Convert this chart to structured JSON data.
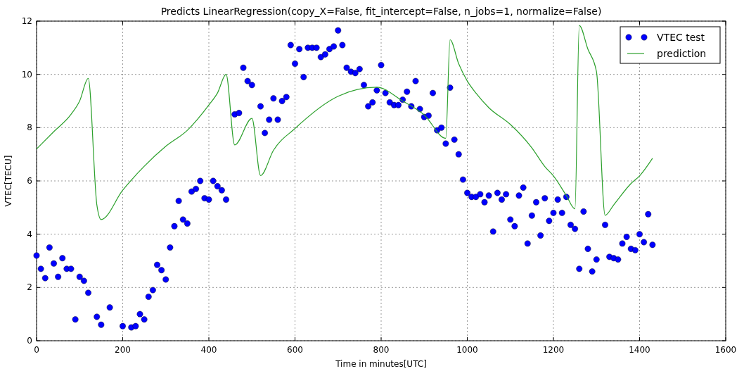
{
  "chart_data": {
    "type": "scatter",
    "title": "Predicts LinearRegression(copy_X=False, fit_intercept=False, n_jobs=1, normalize=False)",
    "xlabel": "Time in minutes[UTC]",
    "ylabel": "VTEC[TECU]",
    "xlim": [
      0,
      1600
    ],
    "ylim": [
      0,
      12
    ],
    "xticks": [
      0,
      200,
      400,
      600,
      800,
      1000,
      1200,
      1400,
      1600
    ],
    "yticks": [
      0,
      2,
      4,
      6,
      8,
      10,
      12
    ],
    "grid": true,
    "legend": "top right",
    "series": [
      {
        "name": "VTEC test",
        "marker": "circle",
        "color": "#0000ff",
        "x": [
          0,
          10,
          20,
          30,
          40,
          50,
          60,
          70,
          80,
          90,
          100,
          110,
          120,
          140,
          150,
          170,
          200,
          220,
          230,
          240,
          250,
          260,
          270,
          280,
          290,
          300,
          310,
          320,
          330,
          340,
          350,
          360,
          370,
          380,
          390,
          400,
          410,
          420,
          430,
          440,
          460,
          470,
          480,
          490,
          500,
          520,
          530,
          540,
          550,
          560,
          570,
          580,
          590,
          600,
          610,
          620,
          630,
          640,
          650,
          660,
          670,
          680,
          690,
          700,
          710,
          720,
          730,
          740,
          750,
          760,
          770,
          780,
          790,
          800,
          810,
          820,
          830,
          840,
          850,
          860,
          870,
          880,
          890,
          900,
          910,
          920,
          930,
          940,
          950,
          960,
          970,
          980,
          990,
          1000,
          1010,
          1020,
          1030,
          1040,
          1050,
          1060,
          1070,
          1080,
          1090,
          1100,
          1110,
          1120,
          1130,
          1140,
          1150,
          1160,
          1170,
          1180,
          1190,
          1200,
          1210,
          1220,
          1230,
          1240,
          1250,
          1260,
          1270,
          1280,
          1290,
          1300,
          1320,
          1330,
          1340,
          1350,
          1360,
          1370,
          1380,
          1390,
          1400,
          1410,
          1420,
          1430
        ],
        "values": [
          3.2,
          2.7,
          2.35,
          3.5,
          2.9,
          2.4,
          3.1,
          2.7,
          2.7,
          0.8,
          2.4,
          2.25,
          1.8,
          0.9,
          0.6,
          1.25,
          0.55,
          0.5,
          0.55,
          1.0,
          0.8,
          1.65,
          1.9,
          2.85,
          2.65,
          2.3,
          3.5,
          4.3,
          5.25,
          4.55,
          4.4,
          5.6,
          5.7,
          6.0,
          5.35,
          5.3,
          6.0,
          5.8,
          5.65,
          5.3,
          8.5,
          8.55,
          10.25,
          9.75,
          9.6,
          8.8,
          7.8,
          8.3,
          9.1,
          8.3,
          9.0,
          9.15,
          11.1,
          10.4,
          10.95,
          9.9,
          11.0,
          11.0,
          11.0,
          10.65,
          10.75,
          10.95,
          11.05,
          11.65,
          11.1,
          10.25,
          10.1,
          10.05,
          10.2,
          9.6,
          8.8,
          8.95,
          9.4,
          10.35,
          9.3,
          8.95,
          8.85,
          8.85,
          9.05,
          9.35,
          8.8,
          9.75,
          8.7,
          8.4,
          8.45,
          9.3,
          7.9,
          8.0,
          7.4,
          9.5,
          7.55,
          7.0,
          6.05,
          5.55,
          5.4,
          5.4,
          5.5,
          5.2,
          5.45,
          4.1,
          5.55,
          5.3,
          5.5,
          4.55,
          4.3,
          5.45,
          5.75,
          3.65,
          4.7,
          5.2,
          3.95,
          5.35,
          4.5,
          4.8,
          5.3,
          4.8,
          5.4,
          4.35,
          4.2,
          2.7,
          4.85,
          3.45,
          2.6,
          3.05,
          4.35,
          3.15,
          3.1,
          3.05,
          3.65,
          3.9,
          3.45,
          3.4,
          4.0,
          3.7,
          4.75,
          3.6
        ]
      },
      {
        "name": "prediction",
        "type": "line",
        "marker": "none",
        "line_style": "solid",
        "color": "#2ca02c",
        "x": [
          0,
          40,
          80,
          100,
          120,
          140,
          150,
          200,
          250,
          300,
          350,
          400,
          420,
          440,
          460,
          500,
          520,
          550,
          600,
          700,
          790,
          850,
          900,
          950,
          960,
          980,
          1000,
          1020,
          1050,
          1100,
          1150,
          1180,
          1200,
          1230,
          1250,
          1260,
          1280,
          1300,
          1320,
          1340,
          1380,
          1400,
          1430
        ],
        "values": [
          7.2,
          7.85,
          8.5,
          9.0,
          9.85,
          5.1,
          4.55,
          5.65,
          6.55,
          7.3,
          7.9,
          8.85,
          9.3,
          10.0,
          7.35,
          8.35,
          6.2,
          7.15,
          7.97,
          9.18,
          9.52,
          9.0,
          8.48,
          7.6,
          11.3,
          10.4,
          9.75,
          9.3,
          8.75,
          8.12,
          7.24,
          6.54,
          6.19,
          5.45,
          4.95,
          11.84,
          10.95,
          10.1,
          4.71,
          5.1,
          5.9,
          6.19,
          6.85
        ]
      }
    ]
  }
}
